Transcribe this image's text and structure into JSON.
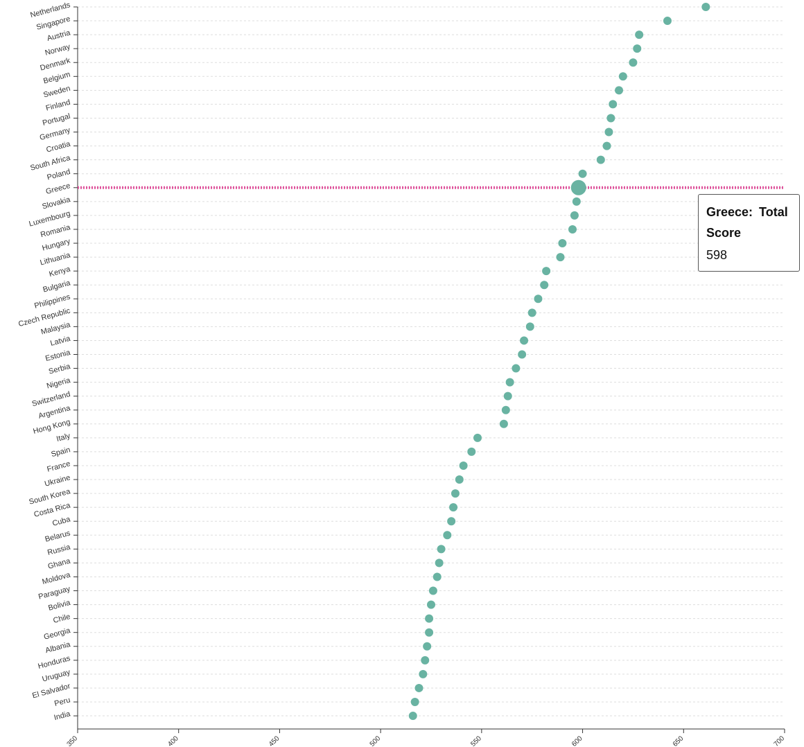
{
  "chart_data": {
    "type": "scatter",
    "xlim": [
      350,
      700
    ],
    "x_ticks": [
      350,
      400,
      450,
      500,
      550,
      600,
      650,
      700
    ],
    "grid": true,
    "point_color": "#69b3a2",
    "highlight_color": "#e0529c",
    "highlighted_category": "Greece",
    "categories": [
      "Netherlands",
      "Singapore",
      "Austria",
      "Norway",
      "Denmark",
      "Belgium",
      "Sweden",
      "Finland",
      "Portugal",
      "Germany",
      "Croatia",
      "South Africa",
      "Poland",
      "Greece",
      "Slovakia",
      "Luxembourg",
      "Romania",
      "Hungary",
      "Lithuania",
      "Kenya",
      "Bulgaria",
      "Philippines",
      "Czech Republic",
      "Malaysia",
      "Latvia",
      "Estonia",
      "Serbia",
      "Nigeria",
      "Switzerland",
      "Argentina",
      "Hong Kong",
      "Italy",
      "Spain",
      "France",
      "Ukraine",
      "South Korea",
      "Costa Rica",
      "Cuba",
      "Belarus",
      "Russia",
      "Ghana",
      "Moldova",
      "Paraguay",
      "Bolivia",
      "Chile",
      "Georgia",
      "Albania",
      "Honduras",
      "Uruguay",
      "El Salvador",
      "Peru",
      "India"
    ],
    "values": [
      661,
      642,
      628,
      627,
      625,
      620,
      618,
      615,
      614,
      613,
      612,
      609,
      600,
      598,
      597,
      596,
      595,
      590,
      589,
      582,
      581,
      578,
      575,
      574,
      571,
      570,
      567,
      564,
      563,
      562,
      561,
      548,
      545,
      541,
      539,
      537,
      536,
      535,
      533,
      530,
      529,
      528,
      526,
      525,
      524,
      524,
      523,
      522,
      521,
      519,
      517,
      516
    ]
  },
  "tooltip": {
    "title": "Greece: Total Score",
    "value": "598"
  }
}
